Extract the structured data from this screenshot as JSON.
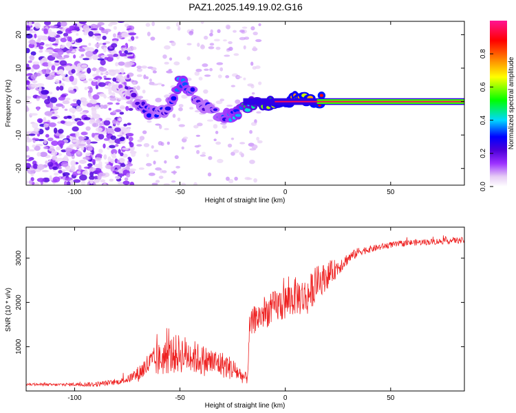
{
  "figure": {
    "title": "PAZ1.2025.149.19.02.G16"
  },
  "chart_data": [
    {
      "type": "heatmap",
      "title": "PAZ1.2025.149.19.02.G16",
      "xlabel": "Height of straight line (km)",
      "ylabel": "Frequency (Hz)",
      "xlim": [
        -123,
        85
      ],
      "ylim": [
        -25,
        24
      ],
      "xticks": [
        -100,
        -50,
        0,
        50
      ],
      "yticks": [
        -20,
        -10,
        0,
        10,
        20
      ],
      "colorbar": {
        "label": "Normalized spectral amplitude",
        "range": [
          0,
          1
        ],
        "ticks": [
          "0.0",
          "0.2",
          "0.4",
          "0.6",
          "0.8"
        ],
        "colors": [
          "#ffffff",
          "#e6ccf5",
          "#9b30ff",
          "#4b00d9",
          "#0000ff",
          "#00d8ff",
          "#00ff00",
          "#ffff00",
          "#ff8c00",
          "#ff0000",
          "#ff1493"
        ]
      },
      "ridge": {
        "x": [
          -75,
          -70,
          -65,
          -60,
          -55,
          -50,
          -45,
          -40,
          -35,
          -30,
          -25,
          -20,
          -15,
          -10,
          -5,
          0,
          5,
          10,
          15,
          20,
          30,
          40,
          50,
          60,
          70,
          85
        ],
        "y": [
          3,
          0,
          -3,
          -4,
          -1,
          6,
          3,
          -1,
          -3,
          -5,
          -4,
          -2,
          -1,
          -0.5,
          0,
          0.5,
          1,
          1,
          0.5,
          0.2,
          0,
          0,
          0,
          0,
          0,
          0
        ],
        "amplitude": [
          0.15,
          0.3,
          0.35,
          0.3,
          0.3,
          0.45,
          0.35,
          0.3,
          0.3,
          0.35,
          0.4,
          0.5,
          0.6,
          0.7,
          0.75,
          0.8,
          0.82,
          0.85,
          0.88,
          0.9,
          0.92,
          0.95,
          0.95,
          0.95,
          0.95,
          0.95
        ]
      }
    },
    {
      "type": "line",
      "xlabel": "Height of straight line (km)",
      "ylabel": "SNR (10 * v/v)",
      "xlim": [
        -123,
        85
      ],
      "ylim": [
        0,
        3700
      ],
      "xticks": [
        -100,
        -50,
        0,
        50
      ],
      "yticks": [
        1000,
        2000,
        3000
      ],
      "color": "#ee2222",
      "series": [
        {
          "x": [
            -123,
            -110,
            -100,
            -90,
            -80,
            -75,
            -70,
            -65,
            -60,
            -55,
            -50,
            -45,
            -40,
            -35,
            -30,
            -25,
            -20,
            -18,
            -17,
            -15,
            -10,
            -5,
            0,
            5,
            10,
            15,
            20,
            25,
            30,
            35,
            40,
            50,
            60,
            70,
            80,
            85
          ],
          "y": [
            150,
            140,
            150,
            150,
            200,
            260,
            380,
            600,
            700,
            800,
            850,
            800,
            700,
            650,
            600,
            500,
            320,
            280,
            1400,
            1600,
            1750,
            1900,
            2000,
            2150,
            2100,
            2450,
            2600,
            2800,
            3000,
            3150,
            3200,
            3300,
            3350,
            3370,
            3400,
            3400
          ],
          "noise": [
            30,
            30,
            40,
            60,
            60,
            80,
            180,
            280,
            380,
            420,
            450,
            400,
            360,
            330,
            300,
            260,
            150,
            120,
            300,
            320,
            350,
            380,
            420,
            430,
            440,
            380,
            300,
            200,
            130,
            100,
            80,
            70,
            70,
            70,
            70,
            70
          ]
        }
      ]
    }
  ]
}
